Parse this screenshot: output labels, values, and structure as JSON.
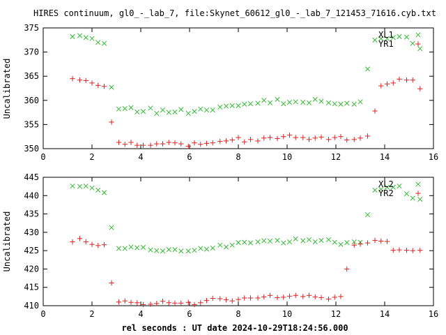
{
  "title": "HIRES continuum, gl0_-_lab_7, file:Skynet_60612_gl0_-_lab_7_121453_71616.cyb.txt",
  "xlabel": "rel seconds : UT date 2024-10-29T18:24:56.000",
  "colors": {
    "green": "#33bb33",
    "red": "#dd2222"
  },
  "chart_data": [
    {
      "type": "scatter",
      "ylabel": "Uncalibrated",
      "xlim": [
        0,
        16
      ],
      "ylim": [
        350,
        375
      ],
      "xticks": [
        0,
        2,
        4,
        6,
        8,
        10,
        12,
        14,
        16
      ],
      "yticks": [
        350,
        355,
        360,
        365,
        370,
        375
      ],
      "legend_position": "top-right",
      "series": [
        {
          "name": "XL1",
          "marker": "x",
          "color": "#33bb33",
          "x": [
            1.2,
            1.5,
            1.75,
            2.0,
            2.25,
            2.5,
            2.8,
            3.1,
            3.35,
            3.6,
            3.85,
            4.1,
            4.4,
            4.65,
            4.9,
            5.15,
            5.4,
            5.65,
            5.95,
            6.2,
            6.45,
            6.7,
            6.95,
            7.25,
            7.5,
            7.75,
            8.0,
            8.25,
            8.5,
            8.8,
            9.05,
            9.3,
            9.6,
            9.85,
            10.1,
            10.35,
            10.65,
            10.9,
            11.15,
            11.4,
            11.7,
            11.95,
            12.2,
            12.45,
            12.75,
            13.0,
            13.3,
            13.6,
            13.85,
            14.1,
            14.35,
            14.6,
            14.9,
            15.15,
            15.45
          ],
          "y": [
            373.2,
            373.4,
            373.0,
            372.8,
            372.0,
            371.8,
            362.7,
            358.2,
            358.3,
            358.5,
            357.6,
            357.7,
            358.4,
            357.3,
            358.0,
            357.5,
            357.6,
            358.1,
            357.3,
            357.7,
            358.2,
            358.0,
            358.0,
            358.6,
            358.8,
            358.9,
            358.9,
            359.2,
            359.3,
            359.4,
            360.0,
            359.5,
            360.2,
            359.3,
            359.6,
            359.7,
            359.6,
            359.5,
            360.2,
            359.8,
            359.5,
            359.3,
            359.2,
            359.4,
            359.2,
            359.7,
            366.5,
            372.5,
            372.8,
            372.8,
            373.0,
            373.2,
            373.1,
            371.8,
            370.7
          ]
        },
        {
          "name": "YR1",
          "marker": "+",
          "color": "#dd2222",
          "x": [
            1.2,
            1.5,
            1.75,
            2.0,
            2.25,
            2.5,
            2.8,
            3.1,
            3.35,
            3.6,
            3.85,
            4.1,
            4.4,
            4.65,
            4.9,
            5.15,
            5.4,
            5.65,
            5.95,
            6.2,
            6.45,
            6.7,
            6.95,
            7.25,
            7.5,
            7.75,
            8.0,
            8.25,
            8.5,
            8.8,
            9.05,
            9.3,
            9.6,
            9.85,
            10.1,
            10.35,
            10.65,
            10.9,
            11.15,
            11.4,
            11.7,
            11.95,
            12.2,
            12.45,
            12.75,
            13.0,
            13.3,
            13.6,
            13.85,
            14.1,
            14.35,
            14.6,
            14.9,
            15.15,
            15.45
          ],
          "y": [
            364.5,
            364.2,
            364.1,
            363.6,
            363.1,
            362.9,
            355.5,
            351.3,
            350.9,
            351.3,
            350.7,
            350.7,
            350.7,
            351.0,
            351.0,
            351.3,
            351.2,
            351.0,
            350.5,
            351.2,
            350.9,
            351.1,
            351.2,
            351.5,
            351.6,
            351.8,
            352.3,
            351.4,
            351.9,
            351.6,
            352.2,
            352.3,
            352.1,
            352.5,
            352.8,
            352.3,
            352.3,
            351.9,
            352.2,
            352.4,
            351.9,
            352.3,
            352.5,
            351.8,
            351.9,
            352.2,
            352.6,
            357.8,
            363.0,
            363.4,
            363.6,
            364.4,
            364.2,
            364.2,
            362.4
          ]
        }
      ]
    },
    {
      "type": "scatter",
      "ylabel": "Uncalibrated",
      "xlim": [
        0,
        16
      ],
      "ylim": [
        410,
        445
      ],
      "xticks": [
        0,
        2,
        4,
        6,
        8,
        10,
        12,
        14,
        16
      ],
      "yticks": [
        410,
        415,
        420,
        425,
        430,
        435,
        440,
        445
      ],
      "legend_position": "top-right",
      "series": [
        {
          "name": "XL2",
          "marker": "x",
          "color": "#33bb33",
          "x": [
            1.2,
            1.5,
            1.75,
            2.0,
            2.25,
            2.5,
            2.8,
            3.1,
            3.35,
            3.6,
            3.85,
            4.1,
            4.4,
            4.65,
            4.9,
            5.15,
            5.4,
            5.65,
            5.95,
            6.2,
            6.45,
            6.7,
            6.95,
            7.25,
            7.5,
            7.75,
            8.0,
            8.25,
            8.5,
            8.8,
            9.05,
            9.3,
            9.6,
            9.85,
            10.1,
            10.35,
            10.65,
            10.9,
            11.15,
            11.4,
            11.7,
            11.95,
            12.2,
            12.45,
            12.75,
            13.0,
            13.3,
            13.6,
            13.85,
            14.1,
            14.35,
            14.6,
            14.9,
            15.15,
            15.45
          ],
          "y": [
            442.6,
            442.5,
            442.6,
            442.1,
            441.5,
            440.8,
            431.3,
            425.6,
            425.6,
            426.0,
            425.8,
            425.9,
            425.2,
            425.0,
            424.9,
            425.3,
            425.3,
            424.9,
            424.9,
            425.1,
            425.6,
            425.4,
            425.7,
            426.5,
            426.0,
            426.5,
            427.2,
            427.3,
            427.1,
            427.4,
            427.7,
            427.6,
            427.8,
            427.1,
            427.4,
            428.2,
            427.7,
            428.0,
            427.4,
            427.8,
            428.0,
            427.3,
            426.7,
            427.2,
            427.4,
            427.3,
            434.8,
            441.5,
            441.7,
            442.3,
            442.3,
            442.6,
            440.5,
            439.3,
            439.0
          ]
        },
        {
          "name": "YR2",
          "marker": "+",
          "color": "#dd2222",
          "x": [
            1.2,
            1.5,
            1.75,
            2.0,
            2.25,
            2.5,
            2.8,
            3.1,
            3.35,
            3.6,
            3.85,
            4.1,
            4.4,
            4.65,
            4.9,
            5.15,
            5.4,
            5.65,
            5.95,
            6.2,
            6.45,
            6.7,
            6.95,
            7.25,
            7.5,
            7.75,
            8.0,
            8.25,
            8.5,
            8.8,
            9.05,
            9.3,
            9.6,
            9.85,
            10.1,
            10.35,
            10.65,
            10.9,
            11.15,
            11.4,
            11.7,
            11.95,
            12.2,
            12.45,
            12.75,
            13.0,
            13.3,
            13.6,
            13.85,
            14.1,
            14.35,
            14.6,
            14.9,
            15.15,
            15.45
          ],
          "y": [
            427.4,
            428.3,
            427.4,
            426.7,
            426.4,
            426.6,
            416.2,
            411.0,
            411.3,
            410.9,
            410.8,
            410.3,
            410.4,
            410.6,
            411.2,
            410.8,
            410.7,
            410.7,
            410.9,
            410.3,
            410.8,
            411.4,
            412.0,
            411.9,
            411.6,
            411.3,
            411.7,
            412.1,
            412.1,
            412.1,
            412.4,
            412.8,
            412.2,
            412.3,
            412.6,
            412.8,
            412.5,
            412.8,
            412.4,
            412.2,
            411.8,
            412.3,
            412.5,
            420.0,
            426.5,
            426.8,
            427.1,
            427.8,
            427.6,
            427.5,
            425.1,
            425.2,
            425.1,
            425.0,
            425.1
          ]
        }
      ]
    }
  ]
}
